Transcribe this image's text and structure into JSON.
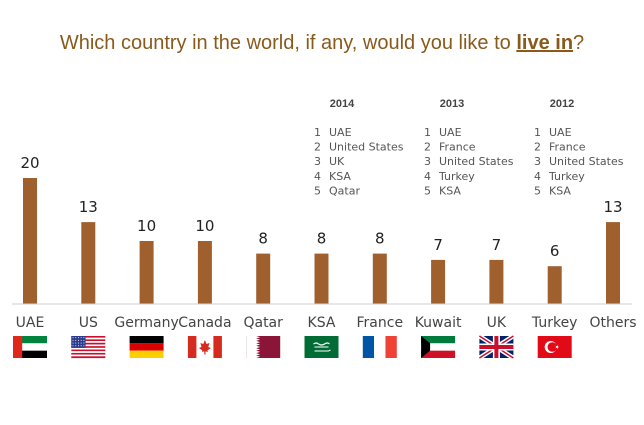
{
  "title": {
    "prefix": "Which country in the world, if any, would you like to ",
    "emphasis": "live in",
    "suffix": "?"
  },
  "chart_data": {
    "type": "bar",
    "title": "Which country in the world, if any, would you like to live in?",
    "categories": [
      "UAE",
      "US",
      "Germany",
      "Canada",
      "Qatar",
      "KSA",
      "France",
      "Kuwait",
      "UK",
      "Turkey",
      "Others"
    ],
    "values": [
      20,
      13,
      10,
      10,
      8,
      8,
      8,
      7,
      7,
      6,
      13
    ],
    "ylim": [
      0,
      21
    ],
    "grid": false,
    "bar_color": "#a0602e",
    "flags": [
      "uae-flag",
      "us-flag",
      "germany-flag",
      "canada-flag",
      "qatar-flag",
      "ksa-flag",
      "france-flag",
      "kuwait-flag",
      "uk-flag",
      "turkey-flag",
      ""
    ]
  },
  "rankings": [
    {
      "year": "2014",
      "items": [
        "UAE",
        "United States",
        "UK",
        "KSA",
        "Qatar"
      ]
    },
    {
      "year": "2013",
      "items": [
        "UAE",
        "France",
        "United States",
        "Turkey",
        "KSA"
      ]
    },
    {
      "year": "2012",
      "items": [
        "UAE",
        "France",
        "United States",
        "Turkey",
        "KSA"
      ]
    }
  ]
}
